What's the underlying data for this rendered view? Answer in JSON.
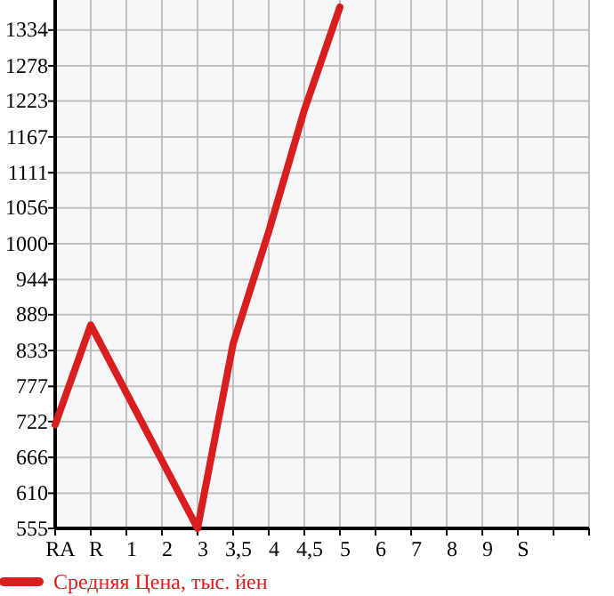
{
  "chart_data": {
    "type": "line",
    "categories": [
      "RA",
      "R",
      "1",
      "2",
      "3",
      "3,5",
      "4",
      "4,5",
      "5",
      "6",
      "7",
      "8",
      "9",
      "S",
      null,
      null
    ],
    "series": [
      {
        "name": "Средняя Цена, тыс. йен",
        "color": "#d81e1e",
        "values": [
          717,
          873,
          null,
          null,
          555,
          844,
          1019,
          1209,
          1370,
          null,
          null,
          null,
          null,
          null,
          null,
          null
        ]
      }
    ],
    "ylim": [
      555,
      1381
    ],
    "yticks": [
      555,
      610,
      666,
      722,
      777,
      833,
      889,
      944,
      1000,
      1056,
      1111,
      1167,
      1223,
      1278,
      1334
    ],
    "grid": true,
    "legend": "bottom left",
    "marker": "none",
    "line_style": "solid"
  }
}
